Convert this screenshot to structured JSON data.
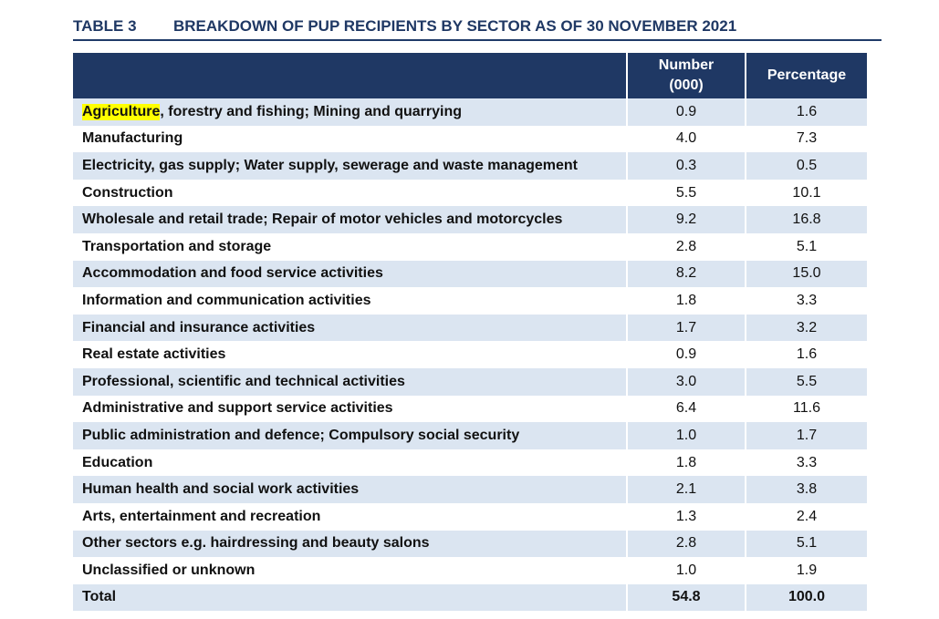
{
  "caption": {
    "number": "TABLE 3",
    "title": "BREAKDOWN OF PUP RECIPIENTS BY SECTOR AS OF 30 NOVEMBER 2021"
  },
  "header": {
    "sector": "",
    "number": "Number\n(000)",
    "percentage": "Percentage"
  },
  "highlight_color": "#ffff00",
  "header_color": "#1f3864",
  "row_shade_color": "#dbe5f1",
  "rows": [
    {
      "sector_hl": "Agriculture",
      "sector": ", forestry and fishing; Mining and quarrying",
      "number": "0.9",
      "percentage": "1.6"
    },
    {
      "sector_hl": "",
      "sector": "Manufacturing",
      "number": "4.0",
      "percentage": "7.3"
    },
    {
      "sector_hl": "",
      "sector": "Electricity, gas supply; Water supply, sewerage and waste management",
      "number": "0.3",
      "percentage": "0.5"
    },
    {
      "sector_hl": "",
      "sector": "Construction",
      "number": "5.5",
      "percentage": "10.1"
    },
    {
      "sector_hl": "",
      "sector": "Wholesale and retail trade; Repair of motor vehicles and motorcycles",
      "number": "9.2",
      "percentage": "16.8"
    },
    {
      "sector_hl": "",
      "sector": "Transportation and storage",
      "number": "2.8",
      "percentage": "5.1"
    },
    {
      "sector_hl": "",
      "sector": "Accommodation and food service activities",
      "number": "8.2",
      "percentage": "15.0"
    },
    {
      "sector_hl": "",
      "sector": "Information and communication activities",
      "number": "1.8",
      "percentage": "3.3"
    },
    {
      "sector_hl": "",
      "sector": "Financial and insurance activities",
      "number": "1.7",
      "percentage": "3.2"
    },
    {
      "sector_hl": "",
      "sector": "Real estate activities",
      "number": "0.9",
      "percentage": "1.6"
    },
    {
      "sector_hl": "",
      "sector": "Professional, scientific and technical activities",
      "number": "3.0",
      "percentage": "5.5"
    },
    {
      "sector_hl": "",
      "sector": "Administrative and support service activities",
      "number": "6.4",
      "percentage": "11.6"
    },
    {
      "sector_hl": "",
      "sector": "Public administration and defence; Compulsory social security",
      "number": "1.0",
      "percentage": "1.7"
    },
    {
      "sector_hl": "",
      "sector": "Education",
      "number": "1.8",
      "percentage": "3.3"
    },
    {
      "sector_hl": "",
      "sector": "Human health and social work activities",
      "number": "2.1",
      "percentage": "3.8"
    },
    {
      "sector_hl": "",
      "sector": "Arts, entertainment and recreation",
      "number": "1.3",
      "percentage": "2.4"
    },
    {
      "sector_hl": "",
      "sector": "Other sectors e.g. hairdressing and beauty salons",
      "number": "2.8",
      "percentage": "5.1"
    },
    {
      "sector_hl": "",
      "sector": "Unclassified or unknown",
      "number": "1.0",
      "percentage": "1.9"
    }
  ],
  "total": {
    "sector": "Total",
    "number": "54.8",
    "percentage": "100.0"
  }
}
